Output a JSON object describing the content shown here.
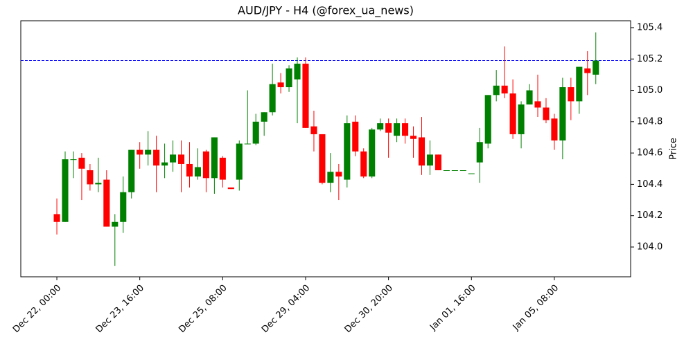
{
  "chart_data": {
    "type": "candlestick",
    "title": "AUD/JPY - H4 (@forex_ua_news)",
    "y_label": "Price",
    "up_color": "green",
    "down_color": "red",
    "open": [
      104.21,
      104.16,
      104.56,
      104.57,
      104.49,
      104.4,
      104.43,
      104.13,
      104.16,
      104.35,
      104.62,
      104.59,
      104.62,
      104.52,
      104.54,
      104.59,
      104.53,
      104.45,
      104.61,
      104.44,
      104.57,
      104.38,
      104.43,
      104.66,
      104.66,
      104.8,
      104.86,
      105.05,
      105.02,
      105.07,
      105.17,
      104.77,
      104.72,
      104.41,
      104.48,
      104.43,
      104.8,
      104.61,
      104.45,
      104.75,
      104.79,
      104.71,
      104.79,
      104.71,
      104.7,
      104.52,
      104.59,
      104.49,
      104.49,
      104.49,
      104.47,
      104.54,
      104.66,
      104.97,
      105.03,
      104.98,
      104.72,
      104.91,
      104.93,
      104.89,
      104.82,
      104.68,
      105.02,
      104.93,
      105.14,
      105.1
    ],
    "high": [
      104.31,
      104.61,
      104.61,
      104.6,
      104.53,
      104.57,
      104.49,
      104.21,
      104.45,
      104.62,
      104.67,
      104.74,
      104.71,
      104.66,
      104.68,
      104.68,
      104.67,
      104.63,
      104.62,
      104.7,
      104.58,
      104.38,
      104.68,
      105.0,
      104.85,
      104.86,
      105.17,
      105.11,
      105.16,
      105.21,
      105.21,
      104.87,
      104.72,
      104.6,
      104.53,
      104.84,
      104.84,
      104.63,
      104.76,
      104.82,
      104.82,
      104.82,
      104.82,
      104.77,
      104.83,
      104.68,
      104.59,
      104.49,
      104.49,
      104.49,
      104.47,
      104.76,
      104.97,
      105.13,
      105.28,
      105.07,
      104.93,
      105.04,
      105.1,
      104.95,
      104.85,
      105.08,
      105.08,
      105.15,
      105.25,
      105.37
    ],
    "low": [
      104.08,
      104.16,
      104.44,
      104.3,
      104.36,
      104.35,
      104.13,
      103.88,
      104.09,
      104.31,
      104.5,
      104.52,
      104.35,
      104.44,
      104.48,
      104.35,
      104.38,
      104.43,
      104.35,
      104.34,
      104.38,
      104.37,
      104.36,
      104.66,
      104.65,
      104.71,
      104.84,
      104.98,
      104.99,
      104.79,
      104.76,
      104.61,
      104.4,
      104.35,
      104.3,
      104.38,
      104.58,
      104.44,
      104.44,
      104.74,
      104.57,
      104.67,
      104.66,
      104.57,
      104.46,
      104.46,
      104.49,
      104.49,
      104.49,
      104.49,
      104.47,
      104.41,
      104.63,
      104.93,
      104.95,
      104.69,
      104.63,
      104.91,
      104.83,
      104.79,
      104.62,
      104.56,
      104.81,
      104.85,
      104.97,
      105.04
    ],
    "close": [
      104.16,
      104.56,
      104.56,
      104.5,
      104.4,
      104.41,
      104.13,
      104.16,
      104.35,
      104.62,
      104.59,
      104.62,
      104.52,
      104.54,
      104.59,
      104.53,
      104.45,
      104.51,
      104.44,
      104.7,
      104.43,
      104.37,
      104.66,
      104.66,
      104.8,
      104.86,
      105.04,
      105.02,
      105.14,
      105.17,
      104.76,
      104.72,
      104.41,
      104.48,
      104.45,
      104.79,
      104.61,
      104.45,
      104.75,
      104.79,
      104.73,
      104.79,
      104.71,
      104.69,
      104.52,
      104.59,
      104.49,
      104.49,
      104.49,
      104.49,
      104.47,
      104.67,
      104.97,
      105.03,
      104.98,
      104.72,
      104.91,
      105.0,
      104.89,
      104.81,
      104.68,
      105.02,
      104.93,
      105.15,
      105.11,
      105.19
    ],
    "hline": {
      "value": 105.19,
      "color": "blue"
    },
    "xlim": [
      -4.35,
      69.2
    ],
    "xticks": [
      {
        "value": 0,
        "label": "Dec 22, 00:00"
      },
      {
        "value": 10,
        "label": "Dec 23, 16:00"
      },
      {
        "value": 20,
        "label": "Dec 25, 08:00"
      },
      {
        "value": 30,
        "label": "Dec 29, 04:00"
      },
      {
        "value": 40,
        "label": "Dec 30, 20:00"
      },
      {
        "value": 50,
        "label": "Jan 01, 16:00"
      },
      {
        "value": 60,
        "label": "Jan 05, 08:00"
      }
    ],
    "ylim": [
      103.81,
      105.444
    ],
    "yticks": [
      {
        "value": 104.0,
        "label": "104.0"
      },
      {
        "value": 104.2,
        "label": "104.2"
      },
      {
        "value": 104.4,
        "label": "104.4"
      },
      {
        "value": 104.6,
        "label": "104.6"
      },
      {
        "value": 104.8,
        "label": "104.8"
      },
      {
        "value": 105.0,
        "label": "105.0"
      },
      {
        "value": 105.2,
        "label": "105.2"
      },
      {
        "value": 105.4,
        "label": "105.4"
      }
    ]
  }
}
